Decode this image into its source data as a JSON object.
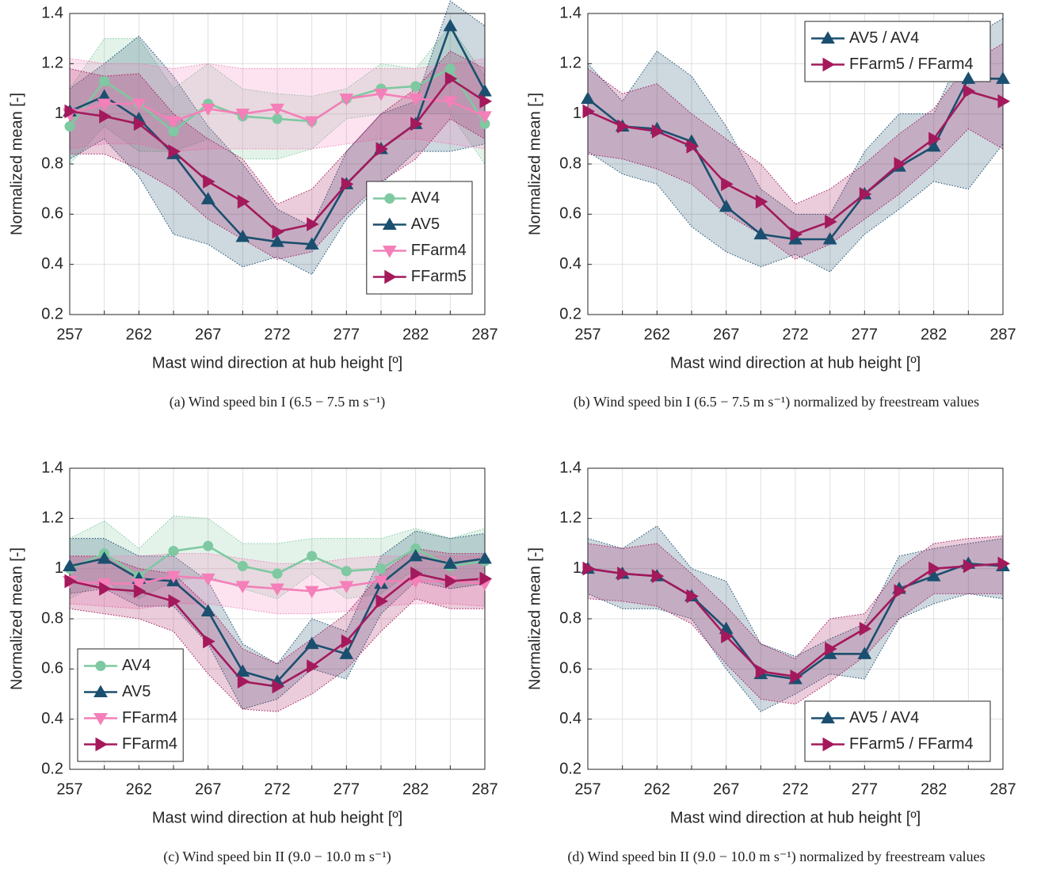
{
  "chart_data": [
    {
      "type": "line",
      "caption": "(a) Wind speed bin I (6.5 − 7.5 m s⁻¹)",
      "xlabel": "Mast wind direction at hub height [º]",
      "ylabel": "Normalized mean [-]",
      "x": [
        257,
        259.5,
        262,
        264.5,
        267,
        269.5,
        272,
        274.5,
        277,
        279.5,
        282,
        284.5,
        287
      ],
      "xlim": [
        257,
        287
      ],
      "ylim": [
        0.2,
        1.4
      ],
      "xticks": [
        257,
        262,
        267,
        272,
        277,
        282,
        287
      ],
      "yticks": [
        0.2,
        0.4,
        0.6,
        0.8,
        1,
        1.2,
        1.4
      ],
      "grid": true,
      "legend": "lower-right",
      "series": [
        {
          "name": "AV4",
          "color": "#7ec9a1",
          "marker": "circle",
          "values": [
            0.95,
            1.13,
            1.04,
            0.93,
            1.04,
            0.99,
            0.98,
            0.97,
            1.06,
            1.1,
            1.11,
            1.18,
            0.96
          ],
          "upper": [
            1.1,
            1.3,
            1.3,
            1.1,
            1.2,
            1.1,
            1.08,
            1.07,
            1.1,
            1.2,
            1.18,
            1.35,
            1.15
          ],
          "lower": [
            0.8,
            0.95,
            0.85,
            0.85,
            0.9,
            0.82,
            0.82,
            0.86,
            0.98,
            1.0,
            1.0,
            1.0,
            0.8
          ]
        },
        {
          "name": "AV5",
          "color": "#1b4f6f",
          "marker": "triangle-up",
          "values": [
            1.01,
            1.07,
            0.98,
            0.84,
            0.66,
            0.51,
            0.49,
            0.48,
            0.72,
            0.86,
            0.96,
            1.35,
            1.09
          ],
          "upper": [
            1.1,
            1.2,
            1.31,
            1.15,
            0.95,
            0.8,
            0.62,
            0.55,
            0.85,
            1.0,
            1.05,
            1.45,
            1.35
          ],
          "lower": [
            0.82,
            0.9,
            0.75,
            0.52,
            0.48,
            0.39,
            0.43,
            0.36,
            0.58,
            0.72,
            0.85,
            0.85,
            0.88
          ]
        },
        {
          "name": "FFarm4",
          "color": "#f47fb9",
          "marker": "triangle-down",
          "values": [
            1.0,
            1.04,
            1.04,
            0.97,
            1.02,
            1.0,
            1.02,
            0.97,
            1.06,
            1.08,
            1.06,
            1.05,
            0.99
          ],
          "upper": [
            1.22,
            1.2,
            1.2,
            1.18,
            1.2,
            1.18,
            1.18,
            1.18,
            1.18,
            1.18,
            1.18,
            1.2,
            1.22
          ],
          "lower": [
            0.86,
            0.88,
            0.88,
            0.85,
            0.86,
            0.86,
            0.86,
            0.86,
            0.88,
            0.9,
            0.9,
            0.88,
            0.86
          ]
        },
        {
          "name": "FFarm5",
          "color": "#a4195c",
          "marker": "triangle-right",
          "values": [
            1.01,
            0.99,
            0.96,
            0.85,
            0.73,
            0.65,
            0.53,
            0.56,
            0.72,
            0.86,
            0.96,
            1.14,
            1.05
          ],
          "upper": [
            1.18,
            1.15,
            1.16,
            1.0,
            0.9,
            0.82,
            0.64,
            0.7,
            0.85,
            1.0,
            1.1,
            1.25,
            1.18
          ],
          "lower": [
            0.84,
            0.84,
            0.78,
            0.7,
            0.58,
            0.5,
            0.42,
            0.45,
            0.6,
            0.73,
            0.82,
            0.98,
            0.9
          ]
        }
      ]
    },
    {
      "type": "line",
      "caption": "(b) Wind speed bin I (6.5 − 7.5 m s⁻¹) normalized by freestream values",
      "xlabel": "Mast wind direction at hub height [º]",
      "ylabel": "Normalized mean [-]",
      "x": [
        257,
        259.5,
        262,
        264.5,
        267,
        269.5,
        272,
        274.5,
        277,
        279.5,
        282,
        284.5,
        287
      ],
      "xlim": [
        257,
        287
      ],
      "ylim": [
        0.2,
        1.4
      ],
      "xticks": [
        257,
        262,
        267,
        272,
        277,
        282,
        287
      ],
      "yticks": [
        0.2,
        0.4,
        0.6,
        0.8,
        1,
        1.2,
        1.4
      ],
      "grid": true,
      "legend": "upper-right",
      "series": [
        {
          "name": "AV5 / AV4",
          "color": "#1b4f6f",
          "marker": "triangle-up",
          "values": [
            1.06,
            0.95,
            0.94,
            0.89,
            0.63,
            0.52,
            0.5,
            0.5,
            0.68,
            0.79,
            0.87,
            1.14,
            1.14
          ],
          "upper": [
            1.2,
            1.05,
            1.25,
            1.15,
            0.95,
            0.7,
            0.6,
            0.6,
            0.85,
            1.0,
            1.0,
            1.3,
            1.38
          ],
          "lower": [
            0.85,
            0.76,
            0.72,
            0.55,
            0.45,
            0.39,
            0.44,
            0.37,
            0.52,
            0.62,
            0.73,
            0.7,
            0.88
          ]
        },
        {
          "name": "FFarm5 / FFarm4",
          "color": "#a4195c",
          "marker": "triangle-right",
          "values": [
            1.01,
            0.95,
            0.93,
            0.87,
            0.72,
            0.65,
            0.52,
            0.57,
            0.68,
            0.8,
            0.9,
            1.09,
            1.05
          ],
          "upper": [
            1.18,
            1.08,
            1.12,
            1.0,
            0.9,
            0.8,
            0.64,
            0.7,
            0.8,
            0.92,
            1.02,
            1.2,
            1.28
          ],
          "lower": [
            0.84,
            0.82,
            0.78,
            0.72,
            0.6,
            0.52,
            0.42,
            0.48,
            0.58,
            0.68,
            0.8,
            0.94,
            0.86
          ]
        }
      ]
    },
    {
      "type": "line",
      "caption": "(c) Wind speed bin II (9.0 − 10.0 m s⁻¹)",
      "xlabel": "Mast wind direction at hub height [º]",
      "ylabel": "Normalized mean [-]",
      "x": [
        257,
        259.5,
        262,
        264.5,
        267,
        269.5,
        272,
        274.5,
        277,
        279.5,
        282,
        284.5,
        287
      ],
      "xlim": [
        257,
        287
      ],
      "ylim": [
        0.2,
        1.4
      ],
      "xticks": [
        257,
        262,
        267,
        272,
        277,
        282,
        287
      ],
      "yticks": [
        0.2,
        0.4,
        0.6,
        0.8,
        1,
        1.2,
        1.4
      ],
      "grid": true,
      "legend": "lower-left",
      "series": [
        {
          "name": "AV4",
          "color": "#7ec9a1",
          "marker": "circle",
          "values": [
            1.0,
            1.06,
            0.97,
            1.07,
            1.09,
            1.01,
            0.98,
            1.05,
            0.99,
            1.0,
            1.08,
            1.01,
            1.03
          ],
          "upper": [
            1.12,
            1.19,
            1.08,
            1.21,
            1.2,
            1.1,
            1.1,
            1.12,
            1.12,
            1.12,
            1.16,
            1.12,
            1.16
          ],
          "lower": [
            0.88,
            0.95,
            0.88,
            0.95,
            0.97,
            0.92,
            0.88,
            0.98,
            0.88,
            0.9,
            1.0,
            0.92,
            0.94
          ]
        },
        {
          "name": "AV5",
          "color": "#1b4f6f",
          "marker": "triangle-up",
          "values": [
            1.01,
            1.04,
            0.96,
            0.95,
            0.83,
            0.59,
            0.55,
            0.7,
            0.66,
            0.94,
            1.05,
            1.02,
            1.04
          ],
          "upper": [
            1.12,
            1.12,
            1.05,
            1.05,
            0.95,
            0.7,
            0.62,
            0.8,
            0.75,
            1.05,
            1.15,
            1.12,
            1.14
          ],
          "lower": [
            0.9,
            0.92,
            0.85,
            0.85,
            0.7,
            0.44,
            0.48,
            0.6,
            0.56,
            0.82,
            0.95,
            0.92,
            0.94
          ]
        },
        {
          "name": "FFarm4",
          "color": "#f47fb9",
          "marker": "triangle-down",
          "values": [
            0.95,
            0.94,
            0.94,
            0.97,
            0.96,
            0.93,
            0.92,
            0.91,
            0.93,
            0.95,
            0.95,
            0.95,
            0.94
          ],
          "upper": [
            1.05,
            1.05,
            1.05,
            1.06,
            1.06,
            1.04,
            1.02,
            1.02,
            1.04,
            1.05,
            1.05,
            1.05,
            1.05
          ],
          "lower": [
            0.86,
            0.85,
            0.84,
            0.86,
            0.86,
            0.84,
            0.82,
            0.82,
            0.83,
            0.85,
            0.86,
            0.86,
            0.85
          ]
        },
        {
          "name": "FFarm4",
          "color": "#a4195c",
          "marker": "triangle-right",
          "values": [
            0.95,
            0.92,
            0.91,
            0.87,
            0.71,
            0.55,
            0.53,
            0.61,
            0.71,
            0.87,
            0.98,
            0.95,
            0.96
          ],
          "upper": [
            1.05,
            1.05,
            1.0,
            0.98,
            0.85,
            0.68,
            0.62,
            0.72,
            0.82,
            0.98,
            1.08,
            1.06,
            1.06
          ],
          "lower": [
            0.84,
            0.82,
            0.8,
            0.75,
            0.58,
            0.44,
            0.43,
            0.5,
            0.6,
            0.75,
            0.88,
            0.84,
            0.84
          ]
        }
      ]
    },
    {
      "type": "line",
      "caption": "(d) Wind speed bin II (9.0 − 10.0 m s⁻¹) normalized by freestream values",
      "xlabel": "Mast wind direction at hub height [º]",
      "ylabel": "Normalized mean [-]",
      "x": [
        257,
        259.5,
        262,
        264.5,
        267,
        269.5,
        272,
        274.5,
        277,
        279.5,
        282,
        284.5,
        287
      ],
      "xlim": [
        257,
        287
      ],
      "ylim": [
        0.2,
        1.4
      ],
      "xticks": [
        257,
        262,
        267,
        272,
        277,
        282,
        287
      ],
      "yticks": [
        0.2,
        0.4,
        0.6,
        0.8,
        1,
        1.2,
        1.4
      ],
      "grid": true,
      "legend": "lower-right",
      "series": [
        {
          "name": "AV5 / AV4",
          "color": "#1b4f6f",
          "marker": "triangle-up",
          "values": [
            1.0,
            0.98,
            0.97,
            0.89,
            0.76,
            0.58,
            0.56,
            0.66,
            0.66,
            0.92,
            0.97,
            1.02,
            1.01
          ],
          "upper": [
            1.12,
            1.08,
            1.17,
            1.0,
            0.95,
            0.7,
            0.65,
            0.72,
            0.78,
            1.05,
            1.08,
            1.1,
            1.12
          ],
          "lower": [
            0.9,
            0.84,
            0.84,
            0.8,
            0.6,
            0.43,
            0.5,
            0.58,
            0.56,
            0.8,
            0.86,
            0.9,
            0.88
          ]
        },
        {
          "name": "FFarm5 / FFarm4",
          "color": "#a4195c",
          "marker": "triangle-right",
          "values": [
            1.0,
            0.98,
            0.97,
            0.89,
            0.73,
            0.59,
            0.57,
            0.68,
            0.76,
            0.91,
            1.0,
            1.01,
            1.02
          ],
          "upper": [
            1.1,
            1.08,
            1.1,
            0.98,
            0.85,
            0.7,
            0.64,
            0.8,
            0.82,
            1.0,
            1.1,
            1.12,
            1.13
          ],
          "lower": [
            0.88,
            0.87,
            0.85,
            0.78,
            0.62,
            0.48,
            0.46,
            0.55,
            0.65,
            0.8,
            0.9,
            0.9,
            0.9
          ]
        }
      ]
    }
  ]
}
